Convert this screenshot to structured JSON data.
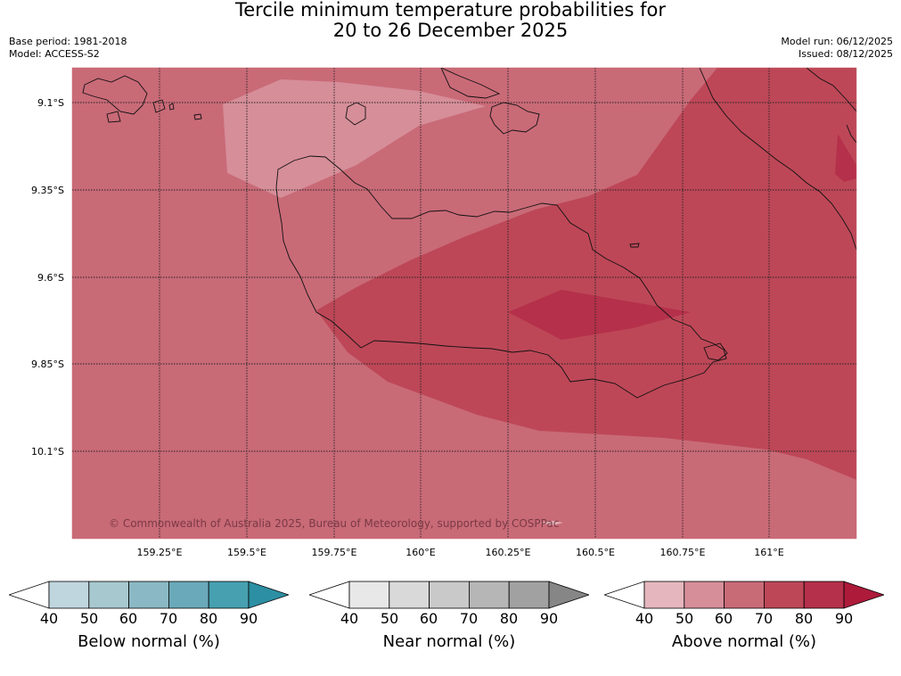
{
  "title": {
    "line1": "Tercile minimum temperature probabilities for",
    "line2": "20 to 26 December 2025"
  },
  "meta": {
    "base_period": "Base period: 1981-2018",
    "model": "Model: ACCESS-S2",
    "model_run": "Model run: 06/12/2025",
    "issued": "Issued: 08/12/2025"
  },
  "map": {
    "lat_labels": [
      "9.1°S",
      "9.35°S",
      "9.6°S",
      "9.85°S",
      "10.1°S"
    ],
    "lon_labels": [
      "159.25°E",
      "159.5°E",
      "159.75°E",
      "160°E",
      "160.25°E",
      "160.5°E",
      "160.75°E",
      "161°E"
    ],
    "copyright": "© Commonwealth of Australia 2025, Bureau of Meteorology, supported by COSPPac",
    "background_category": "Above normal 60-70%"
  },
  "legends": [
    {
      "title": "Below normal (%)",
      "ticks": [
        "40",
        "50",
        "60",
        "70",
        "80",
        "90"
      ],
      "colors": [
        "#ffffff",
        "#c0d6de",
        "#a7c8cf",
        "#8ab8c4",
        "#6aa9b9",
        "#46a0b0",
        "#2d8fa3"
      ]
    },
    {
      "title": "Near normal (%)",
      "ticks": [
        "40",
        "50",
        "60",
        "70",
        "80",
        "90"
      ],
      "colors": [
        "#ffffff",
        "#e8e8e8",
        "#d9d9d9",
        "#c9c9c9",
        "#b6b6b6",
        "#a1a1a1",
        "#868686"
      ]
    },
    {
      "title": "Above normal (%)",
      "ticks": [
        "40",
        "50",
        "60",
        "70",
        "80",
        "90"
      ],
      "colors": [
        "#ffffff",
        "#e5b6bd",
        "#d68e99",
        "#c96a77",
        "#bd4757",
        "#b5304a",
        "#ad1a3a"
      ]
    }
  ]
}
